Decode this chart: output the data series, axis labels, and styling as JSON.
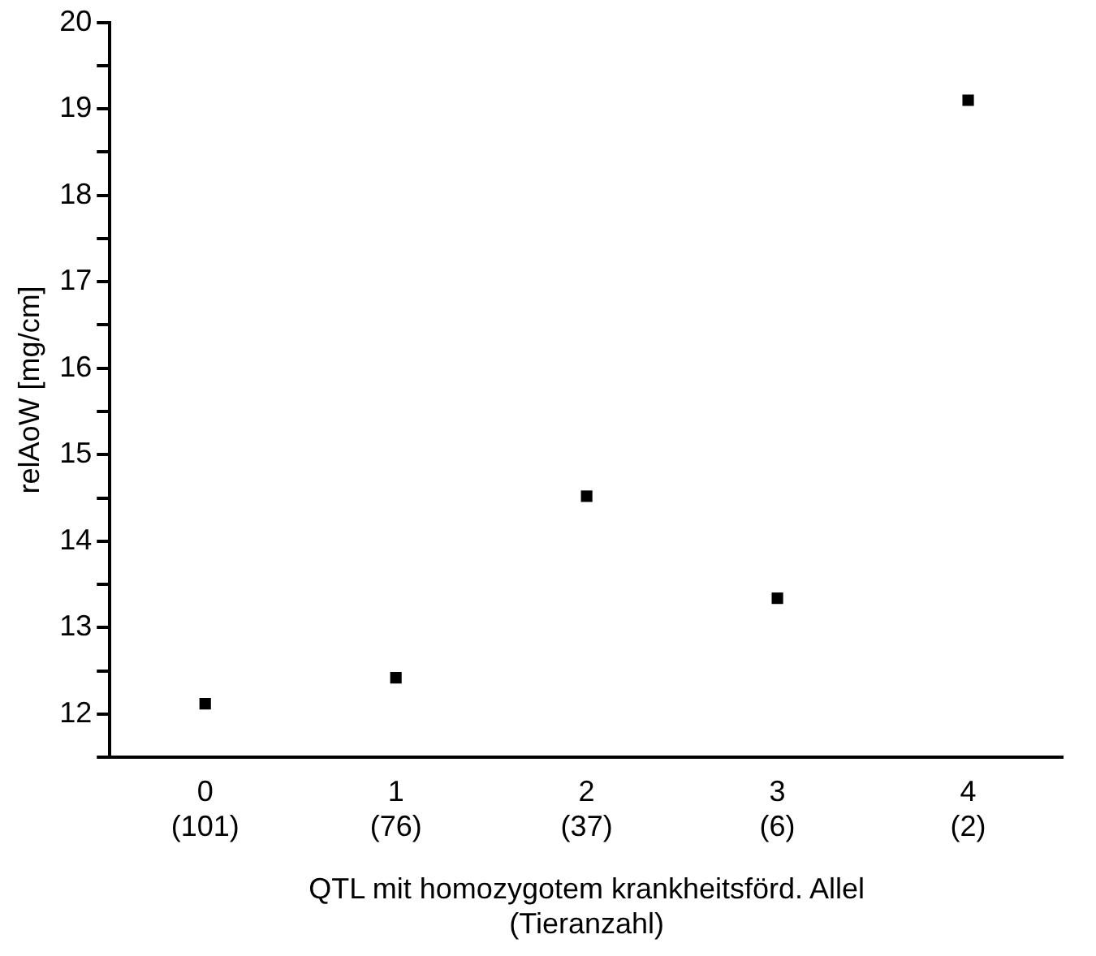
{
  "chart_data": {
    "type": "scatter",
    "xlabel": "QTL mit homozygotem krankheitsförd. Allel\n(Tieranzahl)",
    "ylabel": "relAoW [mg/cm]",
    "categories": [
      "0\n(101)",
      "1\n(76)",
      "2\n(37)",
      "3\n(6)",
      "4\n(2)"
    ],
    "series": [
      {
        "color": "#000000",
        "values": [
          12.12,
          12.42,
          14.52,
          13.34,
          19.1
        ]
      }
    ],
    "ylim": [
      11.5,
      20
    ],
    "yticks": [
      {
        "value": 11.5,
        "label": null
      },
      12,
      {
        "value": 12.5,
        "label": null
      },
      13,
      {
        "value": 13.5,
        "label": null
      },
      14,
      {
        "value": 14.5,
        "label": null
      },
      15,
      {
        "value": 15.5,
        "label": null
      },
      16,
      {
        "value": 16.5,
        "label": null
      },
      17,
      {
        "value": 17.5,
        "label": null
      },
      18,
      {
        "value": 18.5,
        "label": null
      },
      19,
      {
        "value": 19.5,
        "label": null
      },
      20
    ],
    "grid": false,
    "legend": false,
    "marker": "square"
  }
}
